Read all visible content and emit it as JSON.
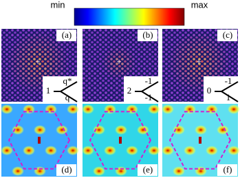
{
  "colorbar": {
    "min": "min",
    "max": "max"
  },
  "top_panels": [
    {
      "label": "(a)",
      "inset": [
        "1",
        "q*",
        "q"
      ]
    },
    {
      "label": "(b)",
      "inset": [
        "2",
        "-1",
        "-1"
      ]
    },
    {
      "label": "(c)",
      "inset": [
        "0",
        "-1",
        "1"
      ]
    }
  ],
  "bottom_panels": [
    {
      "label": "(d)"
    },
    {
      "label": "(e)"
    },
    {
      "label": "(f)"
    }
  ]
}
